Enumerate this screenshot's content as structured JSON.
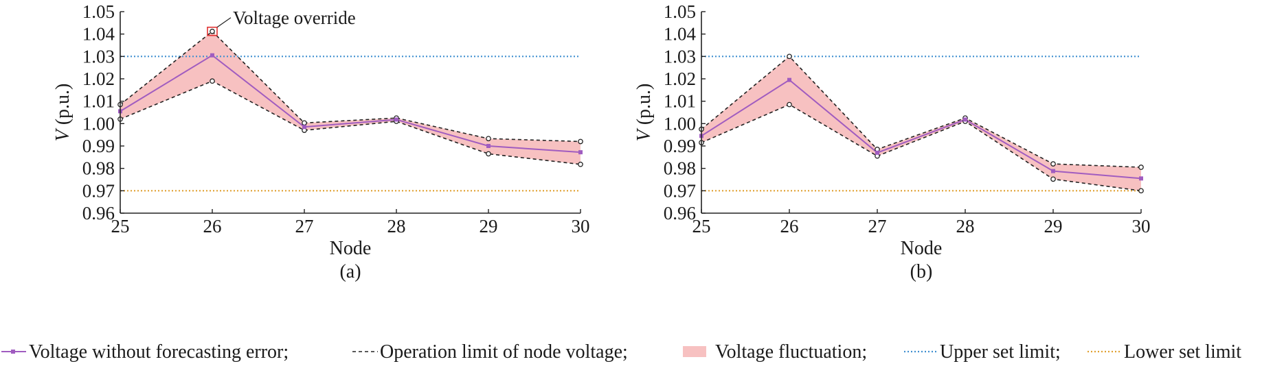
{
  "chart_data": [
    {
      "type": "line",
      "panel_label": "(a)",
      "xlabel": "Node",
      "ylabel_var": "V",
      "ylabel_unit": "(p.u.)",
      "x": [
        25,
        26,
        27,
        28,
        29,
        30
      ],
      "x_tick_labels": [
        "25",
        "26",
        "27",
        "28",
        "29",
        "30"
      ],
      "ylim": [
        0.96,
        1.05
      ],
      "y_ticks": [
        0.96,
        0.97,
        0.98,
        0.99,
        1.0,
        1.01,
        1.02,
        1.03,
        1.04,
        1.05
      ],
      "y_tick_labels": [
        "0.96",
        "0.97",
        "0.98",
        "0.99",
        "1.00",
        "1.01",
        "1.02",
        "1.03",
        "1.04",
        "1.05"
      ],
      "series": {
        "nominal": [
          1.0055,
          1.0305,
          0.9985,
          1.0018,
          0.99,
          0.9872
        ],
        "upper_limit": [
          1.0085,
          1.0412,
          1.0003,
          1.0025,
          0.9933,
          0.992
        ],
        "lower_limit": [
          1.002,
          1.019,
          0.997,
          1.001,
          0.9865,
          0.9818
        ]
      },
      "upper_set_limit": 1.03,
      "lower_set_limit": 0.97,
      "annotation": {
        "text": "Voltage override",
        "x": 26,
        "y": 1.0412
      }
    },
    {
      "type": "line",
      "panel_label": "(b)",
      "xlabel": "Node",
      "ylabel_var": "V",
      "ylabel_unit": "(p.u.)",
      "x": [
        25,
        26,
        27,
        28,
        29,
        30
      ],
      "x_tick_labels": [
        "25",
        "26",
        "27",
        "28",
        "29",
        "30"
      ],
      "ylim": [
        0.96,
        1.05
      ],
      "y_ticks": [
        0.96,
        0.97,
        0.98,
        0.99,
        1.0,
        1.01,
        1.02,
        1.03,
        1.04,
        1.05
      ],
      "y_tick_labels": [
        "0.96",
        "0.97",
        "0.98",
        "0.99",
        "1.00",
        "1.01",
        "1.02",
        "1.03",
        "1.04",
        "1.05"
      ],
      "series": {
        "nominal": [
          0.9945,
          1.0195,
          0.987,
          1.0018,
          0.9788,
          0.9755
        ],
        "upper_limit": [
          0.9975,
          1.03,
          0.9885,
          1.0025,
          0.982,
          0.9805
        ],
        "lower_limit": [
          0.9915,
          1.0085,
          0.9855,
          1.001,
          0.9752,
          0.97
        ]
      },
      "upper_set_limit": 1.03,
      "lower_set_limit": 0.97
    }
  ],
  "legend": [
    {
      "key": "nominal",
      "label": "Voltage without forecasting error;"
    },
    {
      "key": "operation_limit",
      "label": "Operation limit of node voltage;"
    },
    {
      "key": "fluctuation",
      "label": "Voltage fluctuation;"
    },
    {
      "key": "upper_set",
      "label": "Upper set limit;"
    },
    {
      "key": "lower_set",
      "label": "Lower set limit"
    }
  ],
  "colors": {
    "nominal": "#a05cc0",
    "operation_limit": "#222222",
    "fluctuation": "#f7c1c1",
    "upper_set": "#3f8fd0",
    "lower_set": "#e0a030",
    "annotation_box": "#e03030",
    "axis": "#222222"
  }
}
